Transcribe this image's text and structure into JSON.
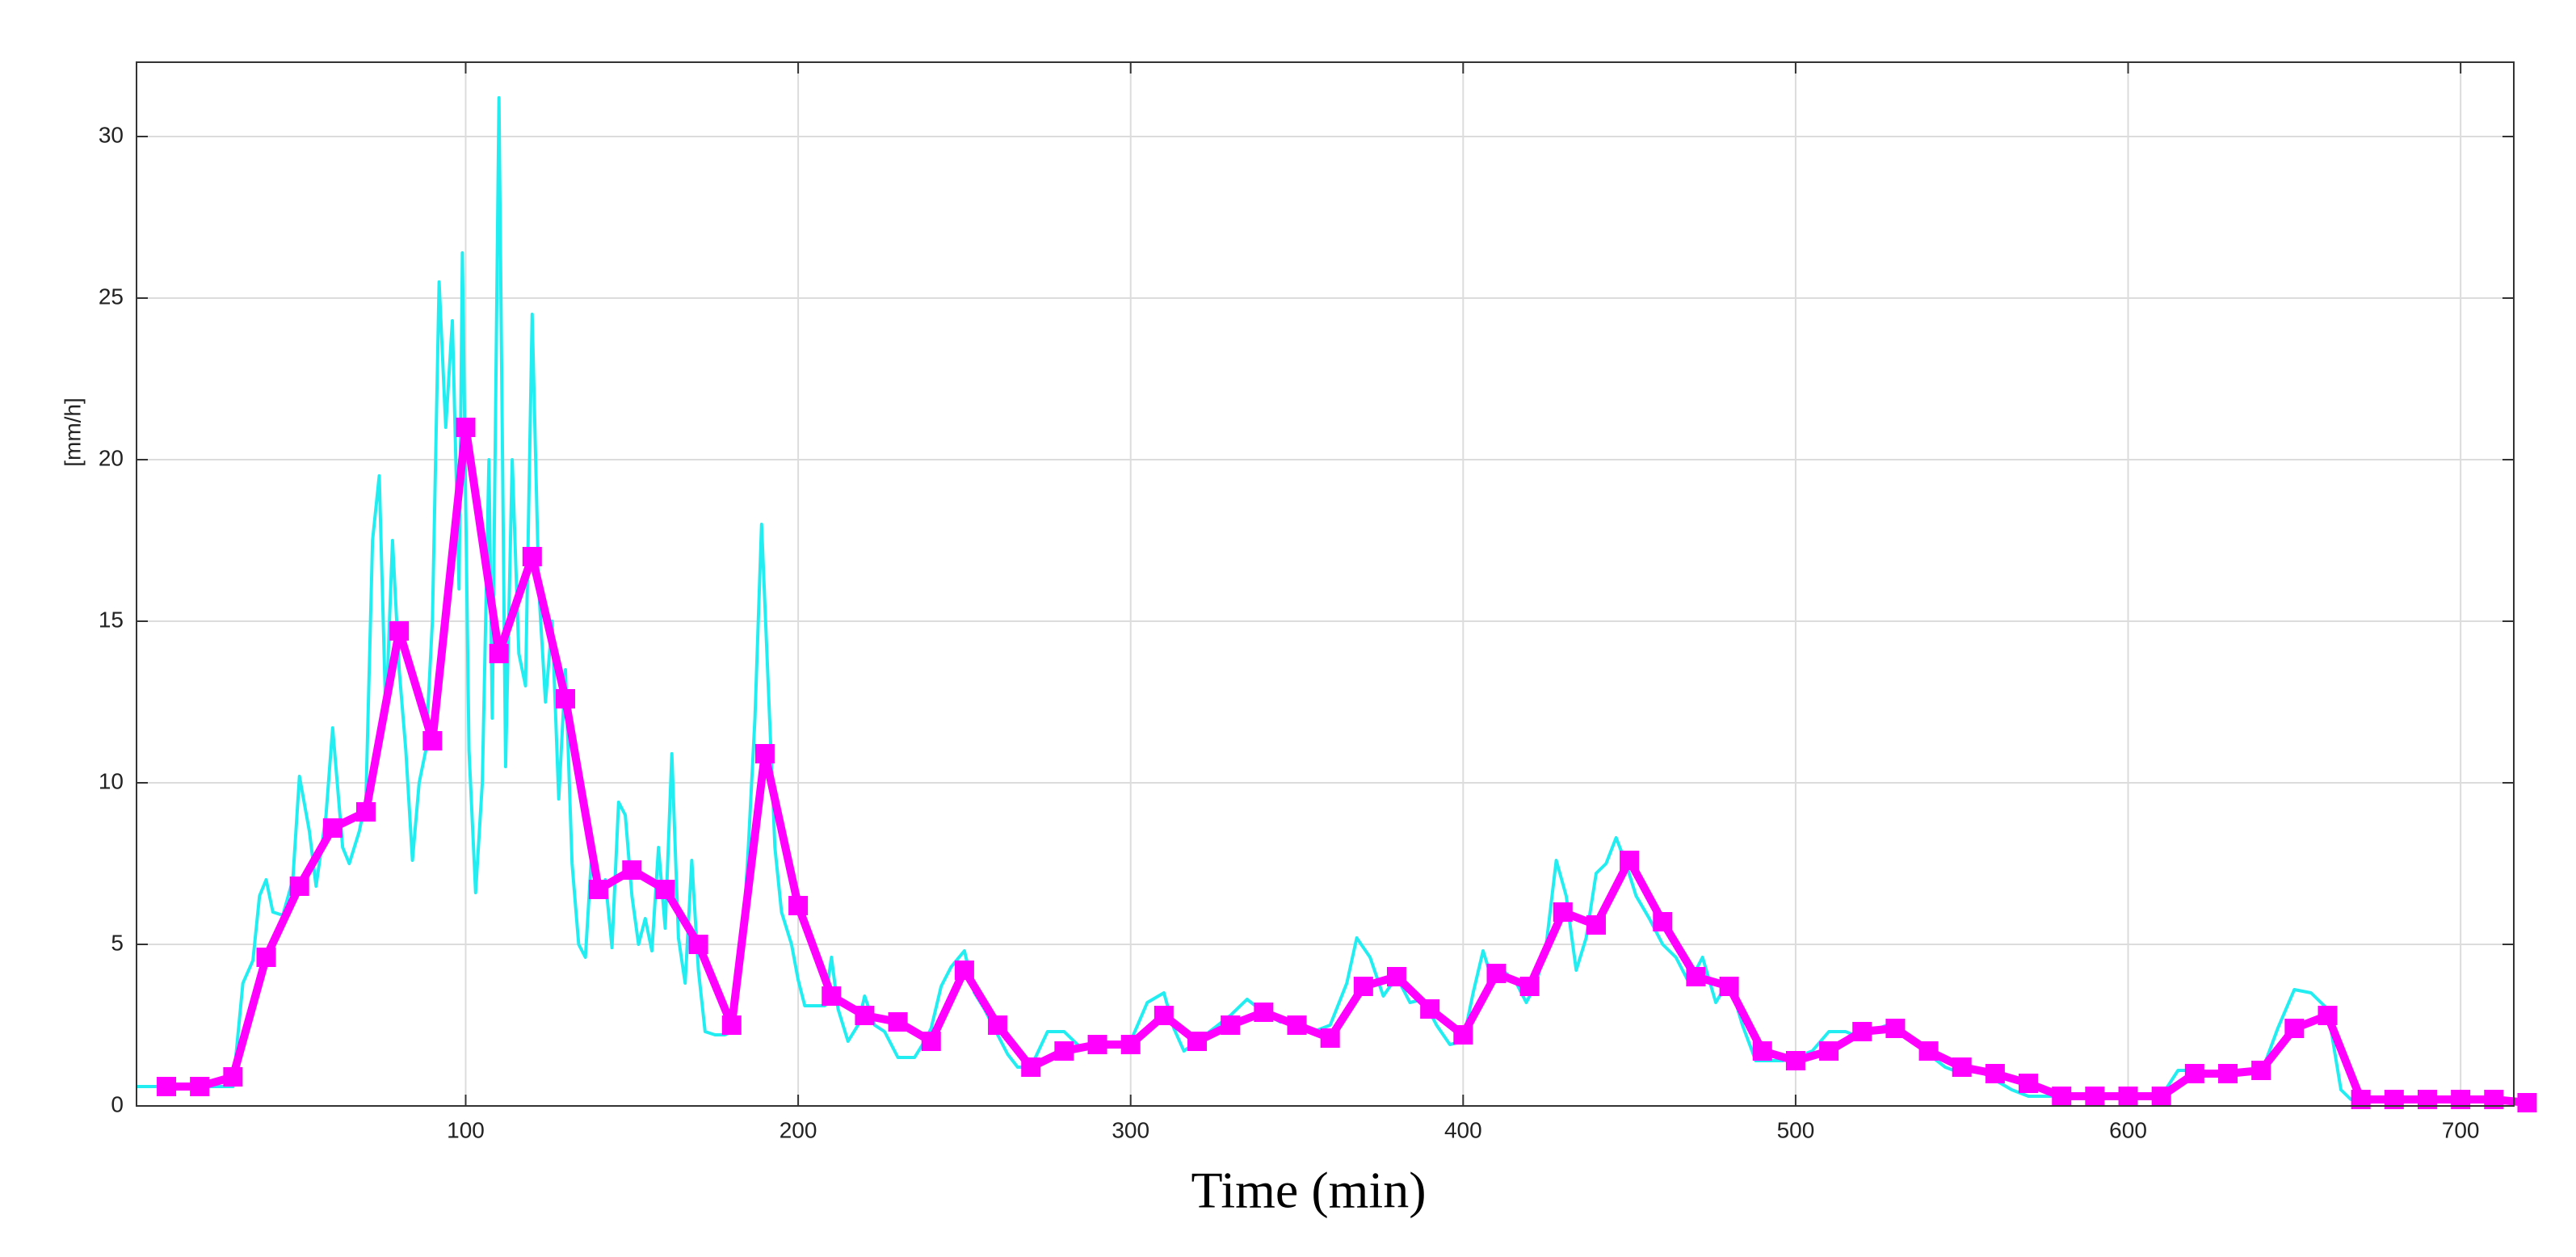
{
  "chart_data": {
    "type": "line",
    "xlabel": "Time (min)",
    "ylabel": "[mm/h]",
    "xlim": [
      1,
      716
    ],
    "ylim": [
      0,
      32.3
    ],
    "xticks": [
      100,
      200,
      300,
      400,
      500,
      600,
      700
    ],
    "yticks": [
      0,
      5,
      10,
      15,
      20,
      25,
      30
    ],
    "grid": true,
    "series": [
      {
        "color": "#22eef2",
        "marker": false,
        "x": [
          1,
          30,
          33,
          36,
          38,
          40,
          42,
          45,
          48,
          50,
          53,
          55,
          58,
          60,
          63,
          65,
          68,
          70,
          72,
          74,
          76,
          78,
          80,
          82,
          84,
          86,
          88,
          90,
          92,
          94,
          96,
          98,
          99,
          101,
          103,
          105,
          107,
          108,
          110,
          112,
          114,
          116,
          118,
          120,
          122,
          124,
          126,
          128,
          130,
          132,
          134,
          136,
          138,
          140,
          142,
          144,
          146,
          148,
          150,
          152,
          154,
          156,
          158,
          160,
          162,
          164,
          166,
          168,
          170,
          172,
          175,
          178,
          180,
          183,
          185,
          187,
          189,
          191,
          193,
          195,
          198,
          200,
          202,
          205,
          208,
          210,
          212,
          215,
          218,
          220,
          223,
          226,
          230,
          235,
          238,
          240,
          243,
          246,
          250,
          253,
          256,
          260,
          263,
          266,
          270,
          275,
          280,
          285,
          290,
          295,
          300,
          305,
          310,
          313,
          316,
          320,
          325,
          330,
          335,
          340,
          345,
          350,
          355,
          360,
          365,
          368,
          372,
          376,
          380,
          384,
          388,
          392,
          396,
          400,
          403,
          406,
          409,
          412,
          416,
          419,
          422,
          425,
          428,
          431,
          434,
          437,
          440,
          443,
          446,
          449,
          452,
          456,
          460,
          464,
          468,
          472,
          476,
          480,
          484,
          488,
          492,
          496,
          500,
          505,
          510,
          515,
          520,
          525,
          530,
          535,
          540,
          545,
          550,
          555,
          560,
          565,
          570,
          575,
          580,
          600,
          610,
          615,
          620,
          630,
          640,
          645,
          650,
          655,
          660,
          664,
          667,
          680,
          700,
          720
        ],
        "values": [
          0.6,
          0.6,
          3.8,
          4.5,
          6.5,
          7.0,
          6.0,
          5.9,
          7.0,
          10.2,
          8.5,
          6.8,
          9.0,
          11.7,
          8.0,
          7.5,
          8.5,
          9.5,
          17.5,
          19.5,
          12.0,
          17.5,
          13.5,
          11.0,
          7.6,
          10.0,
          11.0,
          15.0,
          25.5,
          21.0,
          24.3,
          16.0,
          26.4,
          11.0,
          6.6,
          10.0,
          20.0,
          12.0,
          31.2,
          10.5,
          20.0,
          14.0,
          13.0,
          24.5,
          16.0,
          12.5,
          15.0,
          9.5,
          13.5,
          7.5,
          5.0,
          4.6,
          8.0,
          6.5,
          7.0,
          4.9,
          9.4,
          9.0,
          6.5,
          5.0,
          5.8,
          4.8,
          8.0,
          5.5,
          10.9,
          5.2,
          3.8,
          7.6,
          4.2,
          2.3,
          2.2,
          2.2,
          2.3,
          4.5,
          8.0,
          12.0,
          18.0,
          13.0,
          8.0,
          6.0,
          5.0,
          3.9,
          3.1,
          3.1,
          3.1,
          4.6,
          3.0,
          2.0,
          2.5,
          3.4,
          2.5,
          2.3,
          1.5,
          1.5,
          2.0,
          2.4,
          3.7,
          4.3,
          4.8,
          3.5,
          3.0,
          2.2,
          1.6,
          1.2,
          1.2,
          2.3,
          2.3,
          1.8,
          2.0,
          1.9,
          2.0,
          3.2,
          3.5,
          2.4,
          1.7,
          2.0,
          2.4,
          2.8,
          3.3,
          2.9,
          2.6,
          2.7,
          2.3,
          2.5,
          3.8,
          5.2,
          4.6,
          3.4,
          4.0,
          3.2,
          3.3,
          2.5,
          1.9,
          2.0,
          3.5,
          4.8,
          3.8,
          4.2,
          3.8,
          3.2,
          3.8,
          5.0,
          7.6,
          6.5,
          4.2,
          5.2,
          7.2,
          7.5,
          8.3,
          7.5,
          6.5,
          5.8,
          5.0,
          4.6,
          3.8,
          4.6,
          3.2,
          3.9,
          2.5,
          1.4,
          1.4,
          1.4,
          1.5,
          1.7,
          2.3,
          2.3,
          2.1,
          2.4,
          2.6,
          2.0,
          1.6,
          1.2,
          1.0,
          1.1,
          0.8,
          0.5,
          0.3,
          0.3,
          0.3,
          0.3,
          0.3,
          1.1,
          1.1,
          1.0,
          1.0,
          2.4,
          3.6,
          3.5,
          3.0,
          0.5,
          0.2,
          0.2,
          0.2,
          0.1
        ]
      },
      {
        "color": "#ff00ff",
        "marker": true,
        "x": [
          10,
          20,
          30,
          40,
          50,
          60,
          70,
          80,
          90,
          100,
          110,
          120,
          130,
          140,
          150,
          160,
          170,
          180,
          190,
          200,
          210,
          220,
          230,
          240,
          250,
          260,
          270,
          280,
          290,
          300,
          310,
          320,
          330,
          340,
          350,
          360,
          370,
          380,
          390,
          400,
          410,
          420,
          430,
          440,
          450,
          460,
          470,
          480,
          490,
          500,
          510,
          520,
          530,
          540,
          550,
          560,
          570,
          580,
          590,
          600,
          610,
          620,
          630,
          640,
          650,
          660,
          670,
          680,
          690,
          700,
          710,
          720
        ],
        "values": [
          0.6,
          0.6,
          0.9,
          4.6,
          6.8,
          8.6,
          9.1,
          14.7,
          11.3,
          21.0,
          14.0,
          17.0,
          12.6,
          6.7,
          7.3,
          6.7,
          5.0,
          2.5,
          10.9,
          6.2,
          3.4,
          2.8,
          2.6,
          2.0,
          4.2,
          2.5,
          1.2,
          1.7,
          1.9,
          1.9,
          2.8,
          2.0,
          2.5,
          2.9,
          2.5,
          2.1,
          3.7,
          4.0,
          3.0,
          2.2,
          4.1,
          3.7,
          6.0,
          5.6,
          7.6,
          5.7,
          4.0,
          3.7,
          1.7,
          1.4,
          1.7,
          2.3,
          2.4,
          1.7,
          1.2,
          1.0,
          0.7,
          0.3,
          0.3,
          0.3,
          0.3,
          1.0,
          1.0,
          1.1,
          2.4,
          2.8,
          0.2,
          0.2,
          0.2,
          0.2,
          0.2,
          0.1
        ]
      }
    ]
  }
}
